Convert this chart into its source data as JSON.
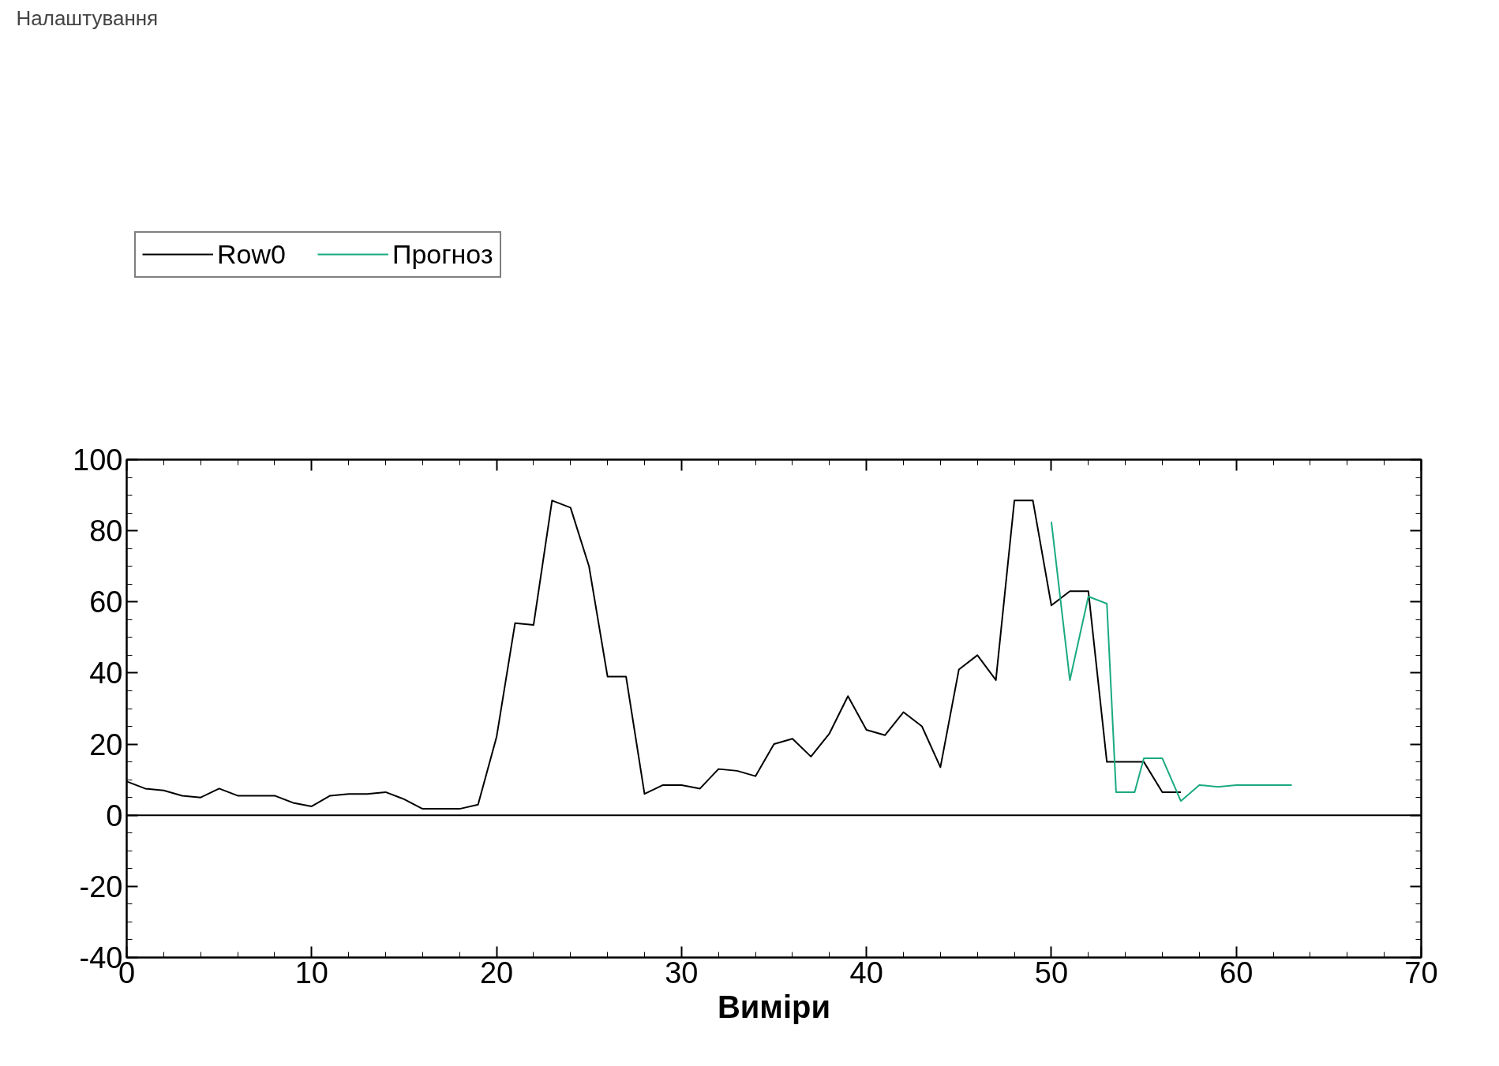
{
  "chart_data": {
    "type": "line",
    "xlabel": "Виміри",
    "annotations": [
      "Налаштування"
    ],
    "xlim": [
      0,
      70
    ],
    "xticks": [
      0,
      10,
      20,
      30,
      40,
      50,
      60,
      70
    ],
    "ylim": [
      -40,
      100
    ],
    "yticks": [
      -40,
      -20,
      0,
      20,
      40,
      60,
      80,
      100
    ],
    "grid": false,
    "legend": "top left",
    "marker": "none",
    "line_style": "solid",
    "ref_lines": [
      {
        "axis": "y",
        "value": 0,
        "color": "#000000"
      }
    ],
    "series": [
      {
        "name": "Row0",
        "color": "#000000",
        "x": [
          0,
          1,
          2,
          3,
          4,
          5,
          6,
          7,
          8,
          9,
          10,
          11,
          12,
          13,
          14,
          15,
          16,
          17,
          18,
          19,
          20,
          21,
          22,
          23,
          24,
          25,
          26,
          27,
          28,
          29,
          30,
          31,
          32,
          33,
          34,
          35,
          36,
          37,
          38,
          39,
          40,
          41,
          42,
          43,
          44,
          45,
          46,
          47,
          48,
          49,
          50,
          51,
          52,
          53,
          54,
          55,
          56,
          57
        ],
        "values": [
          9.5,
          7.5,
          7,
          5.5,
          5,
          7.5,
          5.5,
          5.5,
          5.5,
          3.5,
          2.5,
          5.5,
          6,
          6,
          6.5,
          4.5,
          1.8,
          1.8,
          1.8,
          3,
          22,
          54,
          53.5,
          88.5,
          86.5,
          70,
          39,
          39,
          6,
          8.5,
          8.5,
          7.5,
          13,
          12.5,
          11,
          20,
          21.5,
          16.5,
          23,
          33.5,
          24,
          22.5,
          29,
          25,
          13.5,
          41,
          45,
          38,
          88.5,
          88.5,
          59,
          63,
          63,
          15,
          15,
          15,
          6.5,
          6.5
        ]
      },
      {
        "name": "Прогноз",
        "color": "#1aaa80",
        "x": [
          50,
          51,
          52,
          53,
          53.5,
          54.5,
          55,
          56,
          57,
          58,
          59,
          60,
          61,
          62,
          63
        ],
        "values": [
          82.5,
          38,
          61.5,
          59.5,
          6.5,
          6.5,
          16,
          16,
          4,
          8.5,
          8,
          8.5,
          8.5,
          8.5,
          8.5
        ]
      }
    ]
  }
}
